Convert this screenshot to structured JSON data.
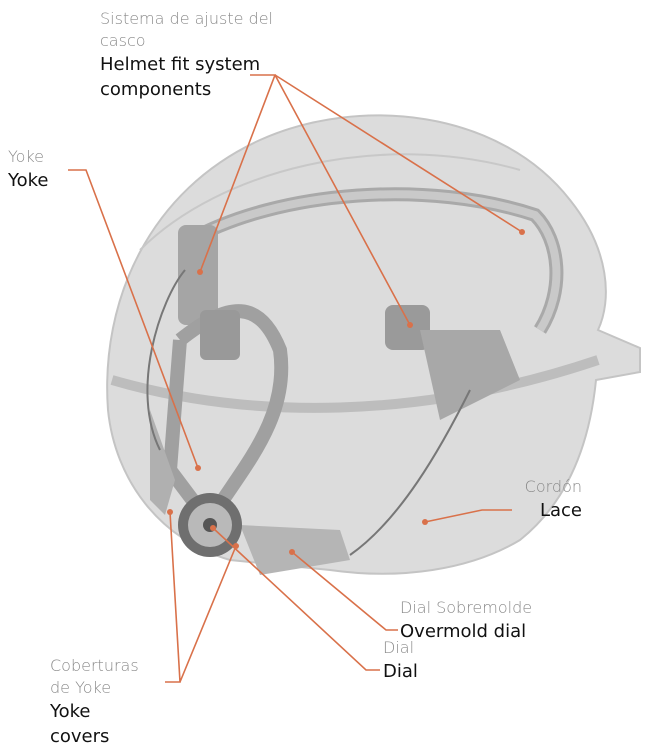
{
  "callouts": [
    {
      "label_es": "Sistema de ajuste del casco",
      "label_en": "Helmet fit system components"
    },
    {
      "label_es": "Yoke",
      "label_en": "Yoke"
    },
    {
      "label_es": "Cordón",
      "label_en": "Lace"
    },
    {
      "label_es": "Dial Sobremolde",
      "label_en": "Overmold dial"
    },
    {
      "label_es": "Dial",
      "label_en": "Dial"
    },
    {
      "label_es": "Coberturas de Yoke",
      "label_en": "Yoke covers"
    }
  ]
}
